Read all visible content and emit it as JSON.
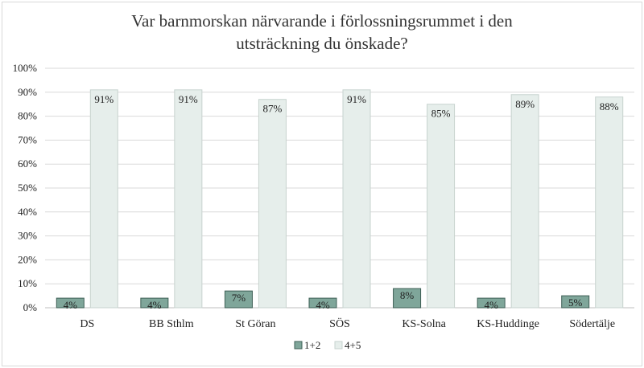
{
  "chart_data": {
    "type": "bar",
    "title_line1": "Var barnmorskan närvarande i förlossningsrummet i den",
    "title_line2": "utsträckning du önskade?",
    "categories": [
      "DS",
      "BB Sthlm",
      "St Göran",
      "SÖS",
      "KS-Solna",
      "KS-Huddinge",
      "Södertälje"
    ],
    "series": [
      {
        "name": "1+2",
        "values": [
          4,
          4,
          7,
          4,
          8,
          4,
          5
        ],
        "labels": [
          "4%",
          "4%",
          "7%",
          "4%",
          "8%",
          "4%",
          "5%"
        ],
        "color": "#7fa69a",
        "stroke": "#3e5f55"
      },
      {
        "name": "4+5",
        "values": [
          91,
          91,
          87,
          91,
          85,
          89,
          88
        ],
        "labels": [
          "91%",
          "91%",
          "87%",
          "91%",
          "85%",
          "89%",
          "88%"
        ],
        "color": "#e6eeeb",
        "stroke": "#c7d3cf"
      }
    ],
    "ylim": [
      0,
      100
    ],
    "yticks": [
      "0%",
      "10%",
      "20%",
      "30%",
      "40%",
      "50%",
      "60%",
      "70%",
      "80%",
      "90%",
      "100%"
    ],
    "grid": true,
    "legend_position": "bottom"
  }
}
